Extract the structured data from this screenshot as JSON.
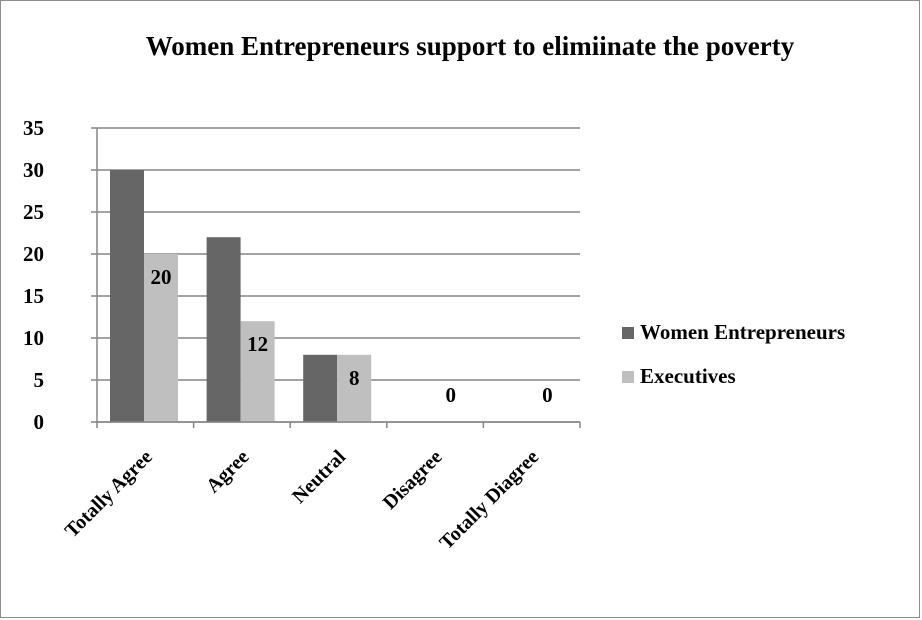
{
  "chart_data": {
    "type": "bar",
    "title": "Women Entrepreneurs support to elimiinate the poverty",
    "categories": [
      "Totally Agree",
      "Agree",
      "Neutral",
      "Disagree",
      "Totally Diagree"
    ],
    "series": [
      {
        "name": "Women Entrepreneurs",
        "values": [
          30,
          22,
          8,
          0,
          0
        ],
        "color": "#666666"
      },
      {
        "name": "Executives",
        "values": [
          20,
          12,
          8,
          0,
          0
        ],
        "color": "#bfbfbf"
      }
    ],
    "data_labels": [
      "20",
      "12",
      "8",
      "0",
      "0"
    ],
    "ylim": [
      0,
      35
    ],
    "yticks": [
      0,
      5,
      10,
      15,
      20,
      25,
      30,
      35
    ],
    "grid": true,
    "legend_position": "right"
  }
}
